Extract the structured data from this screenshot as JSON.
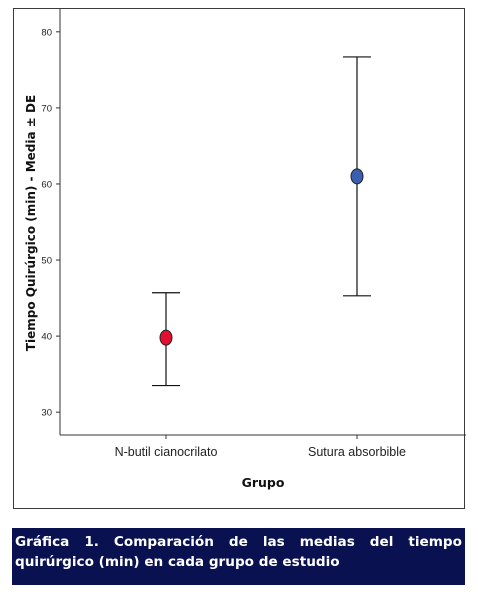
{
  "chart_data": {
    "type": "scatter",
    "subtype": "error-bar",
    "xlabel": "Grupo",
    "ylabel": "Tiempo Quirúrgico (min) - Media ± DE",
    "categories": [
      "N-butil cianocrilato",
      "Sutura absorbible"
    ],
    "means": [
      39.8,
      61.0
    ],
    "lower": [
      33.5,
      45.3
    ],
    "upper": [
      45.7,
      76.7
    ],
    "marker_colors": [
      "#e0102e",
      "#3a5fb0"
    ],
    "ylim": [
      27,
      83
    ],
    "yticks": [
      30,
      40,
      50,
      60,
      70,
      80
    ],
    "grid": false,
    "legend": "none"
  },
  "caption": {
    "text": "Gráfica 1. Comparación de las medias del tiempo quirúrgico (min) en cada grupo de estudio",
    "background": "#0a1150",
    "color": "#ffffff"
  }
}
